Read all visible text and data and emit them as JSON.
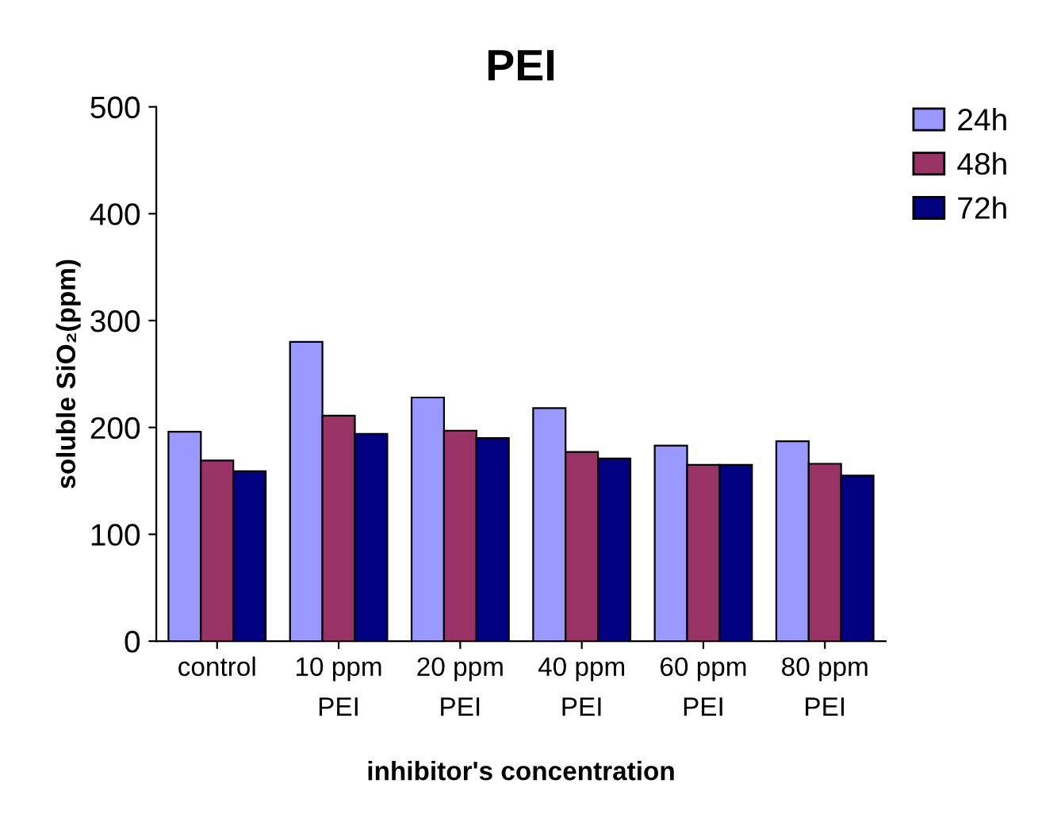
{
  "chart_data": {
    "type": "bar",
    "title": "PEI",
    "xlabel": "inhibitor's concentration",
    "ylabel": "soluble SiO₂(ppm)",
    "categories": [
      "control",
      "10 ppm\nPEI",
      "20 ppm\nPEI",
      "40 ppm\nPEI",
      "60 ppm\nPEI",
      "80 ppm\nPEI"
    ],
    "series": [
      {
        "name": "24h",
        "color": "#9999ff",
        "values": [
          196,
          280,
          228,
          218,
          183,
          187
        ]
      },
      {
        "name": "48h",
        "color": "#993366",
        "values": [
          169,
          211,
          197,
          177,
          165,
          166
        ]
      },
      {
        "name": "72h",
        "color": "#000080",
        "values": [
          159,
          194,
          190,
          171,
          165,
          155
        ]
      }
    ],
    "ylim": [
      0,
      500
    ],
    "yticks": [
      0,
      100,
      200,
      300,
      400,
      500
    ],
    "grid": false,
    "legend": "top right"
  }
}
